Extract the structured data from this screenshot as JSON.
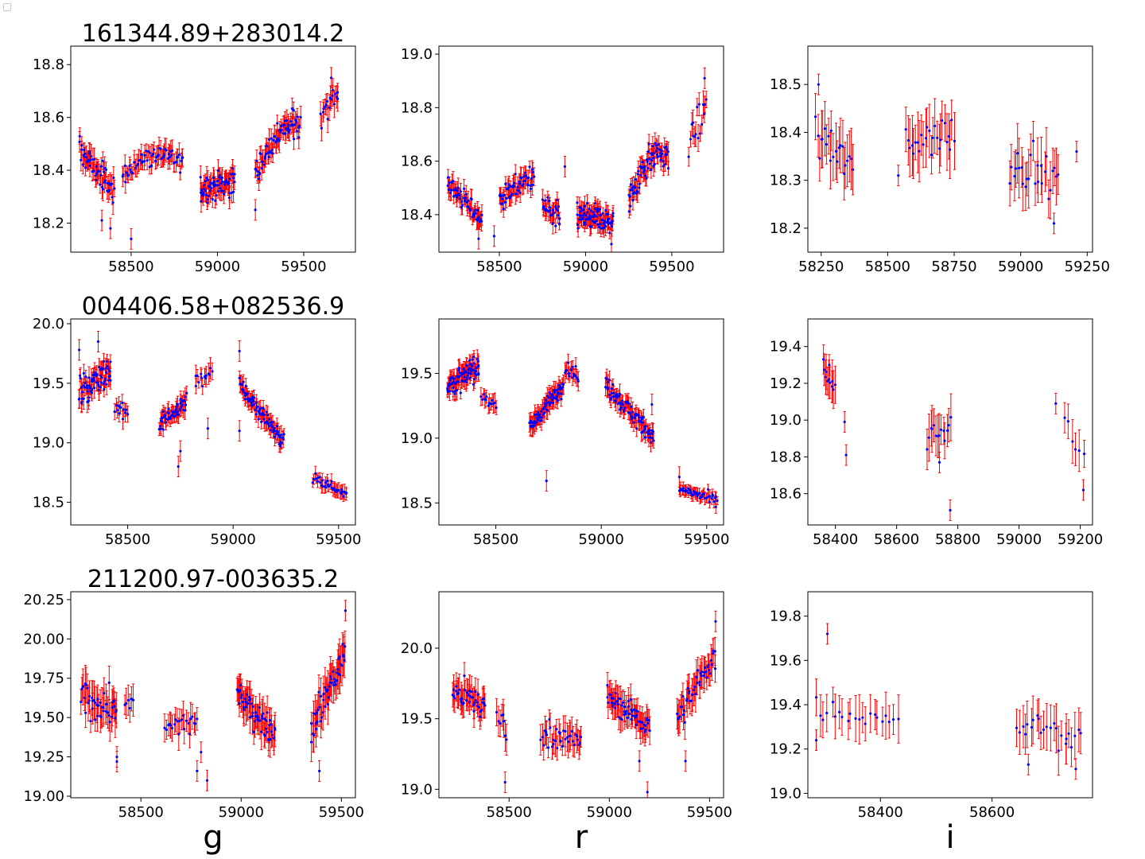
{
  "colors": {
    "points": "#0000ff",
    "errorbars": "#ff0000",
    "axes": "#000000"
  },
  "column_labels": [
    "g",
    "r",
    "i"
  ],
  "chart_data": [
    {
      "type": "scatter",
      "title": "161344.89+283014.2",
      "band": "g",
      "xlim": [
        58150,
        59800
      ],
      "ylim": [
        18.09,
        18.87
      ],
      "xticks": [
        58500,
        59000,
        59500
      ],
      "yticks": [
        18.2,
        18.4,
        18.6,
        18.8
      ],
      "ytick_labels": [
        "18.2",
        "18.4",
        "18.6",
        "18.8"
      ],
      "segments": [
        {
          "x0": 58200,
          "x1": 58400,
          "n": 55,
          "y0": 18.48,
          "y1": 18.32,
          "noise": 0.05,
          "err": 0.035
        },
        {
          "x0": 58450,
          "x1": 58800,
          "n": 60,
          "y0": 18.38,
          "y1": 18.43,
          "noise": 0.04,
          "err": 0.035,
          "bump": 0.05
        },
        {
          "x0": 58900,
          "x1": 59100,
          "n": 70,
          "y0": 18.33,
          "y1": 18.36,
          "noise": 0.05,
          "err": 0.035
        },
        {
          "x0": 59220,
          "x1": 59480,
          "n": 70,
          "y0": 18.38,
          "y1": 18.58,
          "noise": 0.05,
          "err": 0.035,
          "bump": 0.05
        },
        {
          "x0": 59600,
          "x1": 59700,
          "n": 18,
          "y0": 18.62,
          "y1": 18.7,
          "noise": 0.05,
          "err": 0.04
        }
      ],
      "extra_points": [
        [
          58330,
          18.21
        ],
        [
          58380,
          18.18
        ],
        [
          58500,
          18.14
        ],
        [
          59220,
          18.25
        ],
        [
          59660,
          18.75
        ]
      ]
    },
    {
      "type": "scatter",
      "title": "",
      "band": "r",
      "xlim": [
        58150,
        59800
      ],
      "ylim": [
        18.26,
        19.03
      ],
      "xticks": [
        58500,
        59000,
        59500
      ],
      "yticks": [
        18.4,
        18.6,
        18.8,
        19.0
      ],
      "ytick_labels": [
        "18.4",
        "18.6",
        "18.8",
        "19.0"
      ],
      "segments": [
        {
          "x0": 58200,
          "x1": 58400,
          "n": 55,
          "y0": 18.52,
          "y1": 18.38,
          "noise": 0.04,
          "err": 0.03
        },
        {
          "x0": 58500,
          "x1": 58700,
          "n": 55,
          "y0": 18.46,
          "y1": 18.55,
          "noise": 0.04,
          "err": 0.03
        },
        {
          "x0": 58750,
          "x1": 58850,
          "n": 30,
          "y0": 18.42,
          "y1": 18.38,
          "noise": 0.06,
          "err": 0.03
        },
        {
          "x0": 58950,
          "x1": 59160,
          "n": 85,
          "y0": 18.4,
          "y1": 18.37,
          "noise": 0.05,
          "err": 0.03
        },
        {
          "x0": 59250,
          "x1": 59480,
          "n": 75,
          "y0": 18.45,
          "y1": 18.62,
          "noise": 0.05,
          "err": 0.03,
          "bump": 0.07
        },
        {
          "x0": 59600,
          "x1": 59700,
          "n": 16,
          "y0": 18.66,
          "y1": 18.8,
          "noise": 0.06,
          "err": 0.04
        }
      ],
      "extra_points": [
        [
          58380,
          18.31
        ],
        [
          58470,
          18.32
        ],
        [
          58880,
          18.58
        ],
        [
          59150,
          18.29
        ],
        [
          59690,
          18.91
        ]
      ]
    },
    {
      "type": "scatter",
      "title": "",
      "band": "i",
      "xlim": [
        58200,
        59270
      ],
      "ylim": [
        18.15,
        18.58
      ],
      "xticks": [
        58250,
        58500,
        58750,
        59000,
        59250
      ],
      "yticks": [
        18.2,
        18.3,
        18.4,
        18.5
      ],
      "ytick_labels": [
        "18.2",
        "18.3",
        "18.4",
        "18.5"
      ],
      "segments": [
        {
          "x0": 58230,
          "x1": 58370,
          "n": 22,
          "y0": 18.4,
          "y1": 18.32,
          "noise": 0.04,
          "err": 0.05
        },
        {
          "x0": 58570,
          "x1": 58750,
          "n": 26,
          "y0": 18.38,
          "y1": 18.4,
          "noise": 0.04,
          "err": 0.05
        },
        {
          "x0": 58960,
          "x1": 59140,
          "n": 26,
          "y0": 18.34,
          "y1": 18.3,
          "noise": 0.04,
          "err": 0.05
        }
      ],
      "extra_points": [
        [
          58240,
          18.5
        ],
        [
          58540,
          18.31
        ],
        [
          59125,
          18.21
        ],
        [
          59210,
          18.36
        ]
      ]
    },
    {
      "type": "scatter",
      "title": "004406.58+082536.9",
      "band": "g",
      "xlim": [
        58230,
        59580
      ],
      "ylim": [
        18.31,
        20.04
      ],
      "xticks": [
        58500,
        59000,
        59500
      ],
      "yticks": [
        18.5,
        19.0,
        19.5,
        20.0
      ],
      "ytick_labels": [
        "18.5",
        "19.0",
        "19.5",
        "20.0"
      ],
      "segments": [
        {
          "x0": 58270,
          "x1": 58420,
          "n": 70,
          "y0": 19.42,
          "y1": 19.62,
          "noise": 0.12,
          "err": 0.07
        },
        {
          "x0": 58440,
          "x1": 58500,
          "n": 12,
          "y0": 19.3,
          "y1": 19.25,
          "noise": 0.08,
          "err": 0.07
        },
        {
          "x0": 58650,
          "x1": 58780,
          "n": 50,
          "y0": 19.15,
          "y1": 19.35,
          "noise": 0.07,
          "err": 0.06
        },
        {
          "x0": 58820,
          "x1": 58900,
          "n": 14,
          "y0": 19.5,
          "y1": 19.62,
          "noise": 0.08,
          "err": 0.07
        },
        {
          "x0": 59030,
          "x1": 59240,
          "n": 80,
          "y0": 19.48,
          "y1": 19.02,
          "noise": 0.07,
          "err": 0.06
        },
        {
          "x0": 59380,
          "x1": 59540,
          "n": 35,
          "y0": 18.7,
          "y1": 18.58,
          "noise": 0.05,
          "err": 0.05
        }
      ],
      "extra_points": [
        [
          58270,
          19.78
        ],
        [
          58360,
          19.85
        ],
        [
          58740,
          18.8
        ],
        [
          58750,
          18.93
        ],
        [
          59030,
          19.1
        ],
        [
          59030,
          19.77
        ],
        [
          58880,
          19.12
        ]
      ]
    },
    {
      "type": "scatter",
      "title": "",
      "band": "r",
      "xlim": [
        58230,
        59580
      ],
      "ylim": [
        18.33,
        19.92
      ],
      "xticks": [
        58500,
        59000,
        59500
      ],
      "yticks": [
        18.5,
        19.0,
        19.5
      ],
      "ytick_labels": [
        "18.5",
        "19.0",
        "19.5"
      ],
      "segments": [
        {
          "x0": 58270,
          "x1": 58420,
          "n": 85,
          "y0": 19.4,
          "y1": 19.55,
          "noise": 0.09,
          "err": 0.06
        },
        {
          "x0": 58430,
          "x1": 58500,
          "n": 14,
          "y0": 19.35,
          "y1": 19.25,
          "noise": 0.06,
          "err": 0.06
        },
        {
          "x0": 58660,
          "x1": 58820,
          "n": 75,
          "y0": 19.08,
          "y1": 19.42,
          "noise": 0.06,
          "err": 0.06
        },
        {
          "x0": 58830,
          "x1": 58890,
          "n": 18,
          "y0": 19.55,
          "y1": 19.48,
          "noise": 0.07,
          "err": 0.06
        },
        {
          "x0": 59020,
          "x1": 59250,
          "n": 90,
          "y0": 19.42,
          "y1": 19.0,
          "noise": 0.07,
          "err": 0.06
        },
        {
          "x0": 59370,
          "x1": 59550,
          "n": 45,
          "y0": 18.6,
          "y1": 18.52,
          "noise": 0.04,
          "err": 0.04
        }
      ],
      "extra_points": [
        [
          58740,
          18.67
        ],
        [
          59240,
          19.26
        ],
        [
          59370,
          18.7
        ]
      ]
    },
    {
      "type": "scatter",
      "title": "",
      "band": "i",
      "xlim": [
        58310,
        59240
      ],
      "ylim": [
        18.43,
        19.55
      ],
      "xticks": [
        58400,
        58600,
        58800,
        59000,
        59200
      ],
      "yticks": [
        18.6,
        18.8,
        19.0,
        19.2,
        19.4
      ],
      "ytick_labels": [
        "18.6",
        "18.8",
        "19.0",
        "19.2",
        "19.4"
      ],
      "segments": [
        {
          "x0": 58360,
          "x1": 58400,
          "n": 11,
          "y0": 19.28,
          "y1": 19.15,
          "noise": 0.06,
          "err": 0.09
        },
        {
          "x0": 58700,
          "x1": 58775,
          "n": 14,
          "y0": 18.9,
          "y1": 18.95,
          "noise": 0.07,
          "err": 0.1
        },
        {
          "x0": 59150,
          "x1": 59210,
          "n": 6,
          "y0": 18.98,
          "y1": 18.8,
          "noise": 0.07,
          "err": 0.1
        }
      ],
      "extra_points": [
        [
          58380,
          19.3
        ],
        [
          58430,
          18.99
        ],
        [
          58435,
          18.81
        ],
        [
          58740,
          18.77
        ],
        [
          58775,
          18.51
        ],
        [
          59120,
          19.09
        ],
        [
          59210,
          18.62
        ]
      ]
    },
    {
      "type": "scatter",
      "title": "211200.97-003635.2",
      "band": "g",
      "xlim": [
        58150,
        59570
      ],
      "ylim": [
        18.99,
        20.3
      ],
      "xticks": [
        58500,
        59000,
        59500
      ],
      "yticks": [
        19.0,
        19.25,
        19.5,
        19.75,
        20.0,
        20.25
      ],
      "ytick_labels": [
        "19.00",
        "19.25",
        "19.50",
        "19.75",
        "20.00",
        "20.25"
      ],
      "segments": [
        {
          "x0": 58200,
          "x1": 58380,
          "n": 45,
          "y0": 19.62,
          "y1": 19.55,
          "noise": 0.1,
          "err": 0.1
        },
        {
          "x0": 58420,
          "x1": 58460,
          "n": 6,
          "y0": 19.6,
          "y1": 19.58,
          "noise": 0.05,
          "err": 0.08
        },
        {
          "x0": 58620,
          "x1": 58780,
          "n": 22,
          "y0": 19.42,
          "y1": 19.48,
          "noise": 0.07,
          "err": 0.08
        },
        {
          "x0": 58980,
          "x1": 59170,
          "n": 60,
          "y0": 19.65,
          "y1": 19.4,
          "noise": 0.08,
          "err": 0.09
        },
        {
          "x0": 59350,
          "x1": 59520,
          "n": 50,
          "y0": 19.45,
          "y1": 19.9,
          "noise": 0.1,
          "err": 0.1
        }
      ],
      "extra_points": [
        [
          58380,
          19.25
        ],
        [
          58380,
          19.22
        ],
        [
          58780,
          19.16
        ],
        [
          58800,
          19.28
        ],
        [
          58830,
          19.1
        ],
        [
          59390,
          19.16
        ],
        [
          59520,
          20.18
        ]
      ]
    },
    {
      "type": "scatter",
      "title": "",
      "band": "r",
      "xlim": [
        58150,
        59570
      ],
      "ylim": [
        18.94,
        20.4
      ],
      "xticks": [
        58500,
        59000,
        59500
      ],
      "yticks": [
        19.0,
        19.5,
        20.0
      ],
      "ytick_labels": [
        "19.0",
        "19.5",
        "20.0"
      ],
      "segments": [
        {
          "x0": 58220,
          "x1": 58380,
          "n": 45,
          "y0": 19.7,
          "y1": 19.58,
          "noise": 0.1,
          "err": 0.09
        },
        {
          "x0": 58440,
          "x1": 58490,
          "n": 8,
          "y0": 19.55,
          "y1": 19.45,
          "noise": 0.1,
          "err": 0.09
        },
        {
          "x0": 58660,
          "x1": 58860,
          "n": 35,
          "y0": 19.4,
          "y1": 19.35,
          "noise": 0.09,
          "err": 0.09
        },
        {
          "x0": 58990,
          "x1": 59200,
          "n": 60,
          "y0": 19.65,
          "y1": 19.45,
          "noise": 0.08,
          "err": 0.09
        },
        {
          "x0": 59340,
          "x1": 59530,
          "n": 45,
          "y0": 19.5,
          "y1": 19.95,
          "noise": 0.1,
          "err": 0.1
        }
      ],
      "extra_points": [
        [
          58480,
          19.05
        ],
        [
          59150,
          19.2
        ],
        [
          59190,
          18.98
        ],
        [
          59380,
          19.2
        ],
        [
          59530,
          20.19
        ]
      ]
    },
    {
      "type": "scatter",
      "title": "",
      "band": "i",
      "xlim": [
        58270,
        58780
      ],
      "ylim": [
        18.98,
        19.91
      ],
      "xticks": [
        58400,
        58600
      ],
      "yticks": [
        19.0,
        19.2,
        19.4,
        19.6,
        19.8
      ],
      "ytick_labels": [
        "19.0",
        "19.2",
        "19.4",
        "19.6",
        "19.8"
      ],
      "segments": [
        {
          "x0": 58285,
          "x1": 58430,
          "n": 22,
          "y0": 19.38,
          "y1": 19.33,
          "noise": 0.05,
          "err": 0.09
        },
        {
          "x0": 58645,
          "x1": 58760,
          "n": 24,
          "y0": 19.32,
          "y1": 19.25,
          "noise": 0.06,
          "err": 0.09
        }
      ],
      "extra_points": [
        [
          58285,
          19.24
        ],
        [
          58305,
          19.72
        ],
        [
          58665,
          19.13
        ],
        [
          58750,
          19.11
        ]
      ]
    }
  ]
}
